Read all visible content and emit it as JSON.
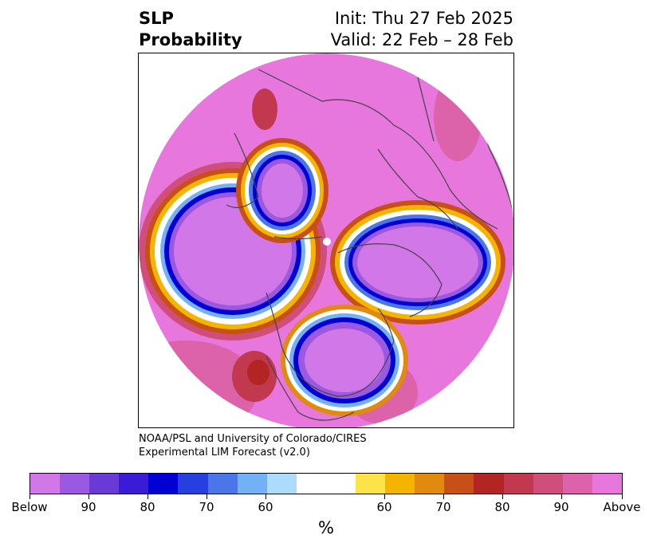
{
  "title": {
    "line1": "SLP",
    "line2": "Probability",
    "init": "Init: Thu 27 Feb 2025",
    "valid": "Valid: 22 Feb – 28 Feb"
  },
  "credit": {
    "line1": "NOAA/PSL and University of Colorado/CIRES",
    "line2": "Experimental LIM Forecast (v2.0)"
  },
  "map": {
    "projection": "north-polar-stereographic",
    "background_color": "#e776dd",
    "pole_marker_color": "#ffffff"
  },
  "colorbar": {
    "unit": "%",
    "colors": [
      "#d277e8",
      "#9b58e0",
      "#6a3ad8",
      "#3a1bd6",
      "#0000d3",
      "#2540df",
      "#4a76ea",
      "#72b2f4",
      "#addbfb",
      "#ffffff",
      "#fde24a",
      "#f4b400",
      "#e08a10",
      "#c85018",
      "#b32424",
      "#c2384e",
      "#cf4e7c",
      "#dc62aa",
      "#e776dd"
    ],
    "tick_labels": [
      "Below",
      "90",
      "80",
      "70",
      "60",
      "60",
      "70",
      "80",
      "90",
      "Above"
    ]
  }
}
